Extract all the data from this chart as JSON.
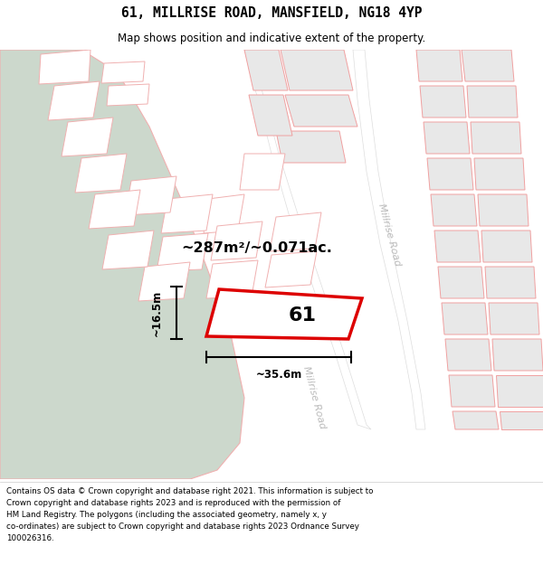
{
  "title_line1": "61, MILLRISE ROAD, MANSFIELD, NG18 4YP",
  "title_line2": "Map shows position and indicative extent of the property.",
  "footer_text": "Contains OS data © Crown copyright and database right 2021. This information is subject to Crown copyright and database rights 2023 and is reproduced with the permission of\nHM Land Registry. The polygons (including the associated geometry, namely x, y\nco-ordinates) are subject to Crown copyright and database rights 2023 Ordnance Survey\n100026316.",
  "area_label": "~287m²/~0.071ac.",
  "number_label": "61",
  "width_label": "~35.6m",
  "height_label": "~16.5m",
  "map_bg": "#f5f5f5",
  "green_color": "#ccd8cc",
  "building_fill": "#e8e8e8",
  "building_edge": "#f0a0a0",
  "road_fill": "#ffffff",
  "road_edge": "#dddddd",
  "plot_edge": "#dd0000",
  "plot_fill": "#ffffff",
  "road_label_color": "#bbbbbb",
  "dim_color": "#000000",
  "title_color": "#000000",
  "footer_color": "#000000",
  "parcel_outline": "#f0b0b0"
}
